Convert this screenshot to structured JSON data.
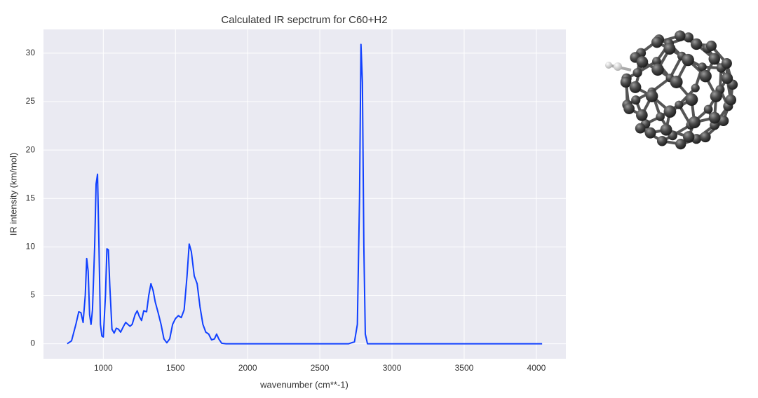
{
  "chart_data": {
    "type": "line",
    "title": "Calculated IR sepctrum for C60+H2",
    "x_label": "wavenumber (cm**-1)",
    "y_label": "IR intensity (km/mol)",
    "xlim": [
      585.5,
      4204.5
    ],
    "ylim": [
      -1.55,
      32.45
    ],
    "xticks": [
      1000,
      1500,
      2000,
      2500,
      3000,
      3500,
      4000
    ],
    "yticks": [
      0,
      5,
      10,
      15,
      20,
      25,
      30
    ],
    "grid": true,
    "series": [
      {
        "color": "#1040ff",
        "x": [
          750,
          780,
          810,
          830,
          845,
          860,
          875,
          885,
          895,
          905,
          915,
          925,
          940,
          950,
          960,
          970,
          980,
          990,
          1000,
          1015,
          1025,
          1035,
          1045,
          1060,
          1075,
          1090,
          1105,
          1120,
          1140,
          1155,
          1170,
          1185,
          1200,
          1220,
          1235,
          1250,
          1265,
          1280,
          1300,
          1315,
          1330,
          1345,
          1360,
          1380,
          1400,
          1420,
          1440,
          1460,
          1480,
          1500,
          1520,
          1540,
          1560,
          1580,
          1595,
          1610,
          1630,
          1650,
          1670,
          1690,
          1710,
          1730,
          1750,
          1770,
          1785,
          1800,
          1820,
          1850,
          2700,
          2740,
          2760,
          2775,
          2785,
          2795,
          2805,
          2815,
          2830,
          4040
        ],
        "values": [
          0,
          0.3,
          2,
          3.3,
          3.2,
          2.2,
          5,
          8.8,
          7.5,
          3,
          2,
          3.5,
          10,
          16.5,
          17.5,
          10,
          2,
          0.8,
          0.7,
          5,
          9.8,
          9.7,
          6,
          1.5,
          1.1,
          1.6,
          1.5,
          1.2,
          1.8,
          2.2,
          2,
          1.8,
          2,
          3,
          3.4,
          2.8,
          2.4,
          3.4,
          3.3,
          5,
          6.2,
          5.5,
          4.3,
          3.2,
          2,
          0.5,
          0.1,
          0.5,
          2,
          2.6,
          2.9,
          2.7,
          3.5,
          7,
          10.3,
          9.5,
          7,
          6.2,
          3.8,
          2,
          1.2,
          1,
          0.4,
          0.5,
          1,
          0.5,
          0.05,
          0,
          0,
          0.2,
          2,
          15,
          30.9,
          27,
          10,
          1,
          0,
          0
        ]
      }
    ]
  }
}
